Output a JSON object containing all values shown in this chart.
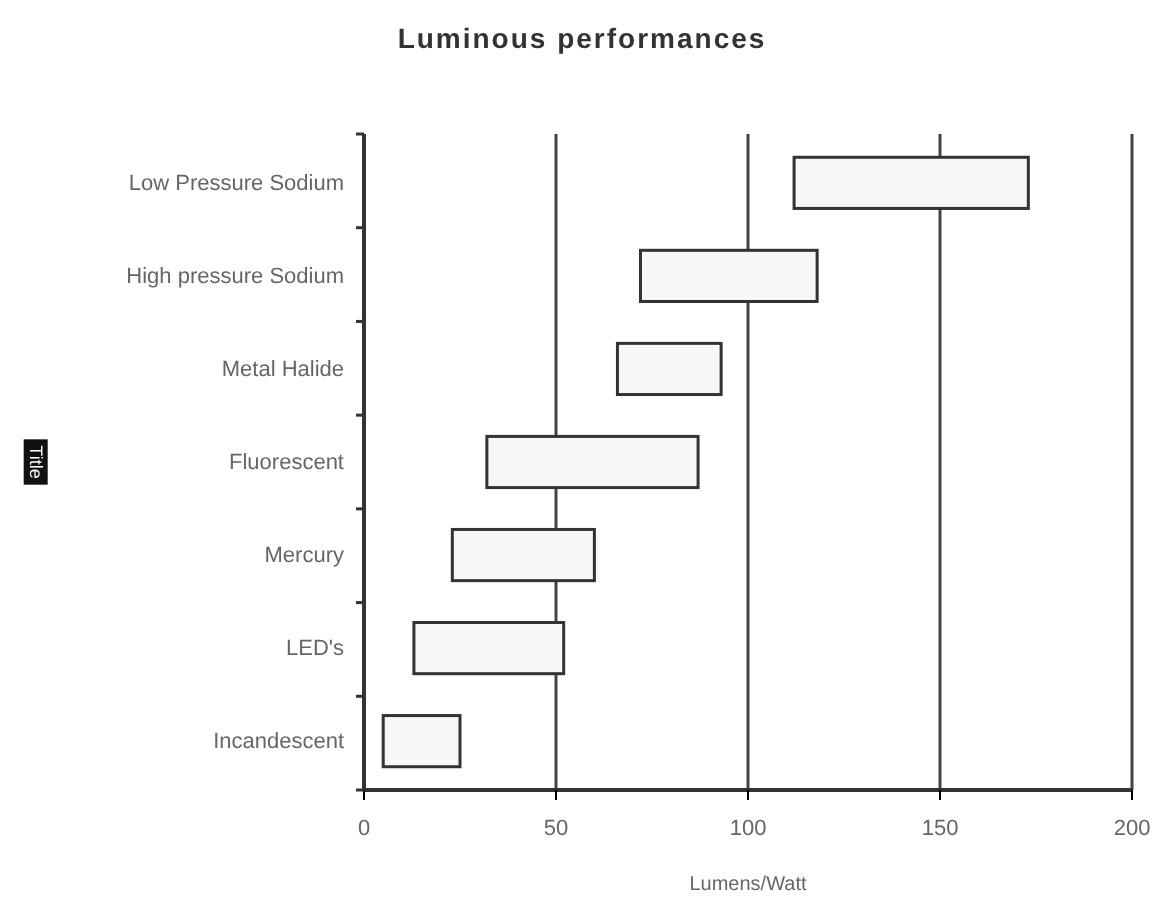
{
  "chart_data": {
    "type": "bar",
    "orientation": "horizontal",
    "title": "Luminous performances",
    "xlabel": "Lumens/Watt",
    "ylabel": "Title",
    "categories": [
      "Low Pressure Sodium",
      "High pressure Sodium",
      "Metal Halide",
      "Fluorescent",
      "Mercury",
      "LED's",
      "Incandescent"
    ],
    "base": [
      112,
      72,
      66,
      32,
      23,
      13,
      5
    ],
    "values": [
      61,
      46,
      27,
      55,
      37,
      39,
      20
    ],
    "color": "#f7f7f7",
    "xlim": [
      0,
      200
    ],
    "xticks": [
      0,
      50,
      100,
      150,
      200
    ],
    "grid": "x"
  }
}
